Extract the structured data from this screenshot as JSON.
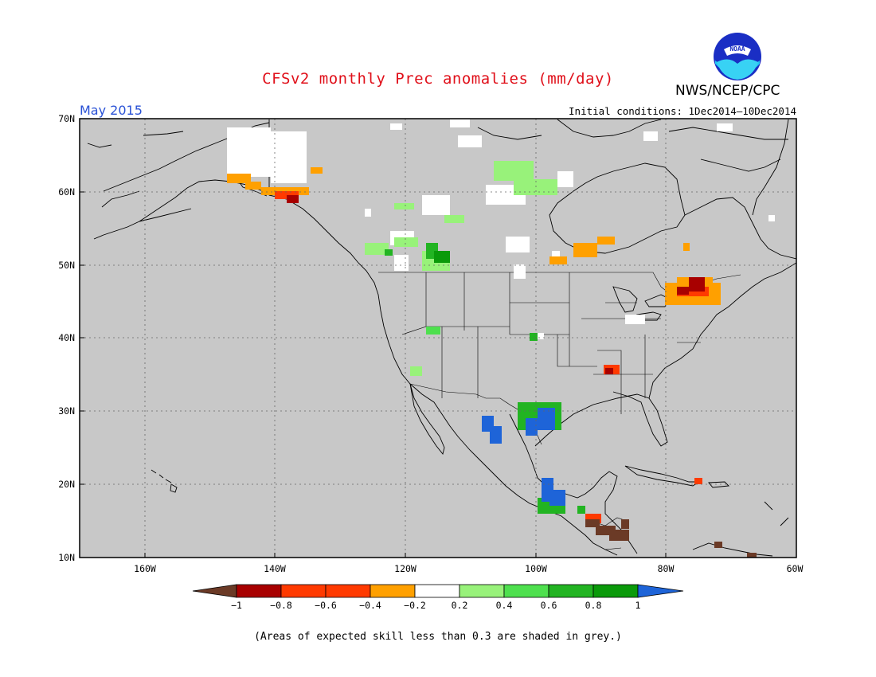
{
  "header": {
    "title": "CFSv2 monthly Prec anomalies (mm/day)",
    "agency": "NWS/NCEP/CPC",
    "logo_text": "NOAA",
    "month": "May 2015",
    "initial_conditions": "Initial conditions: 1Dec2014—10Dec2014"
  },
  "map": {
    "lat_labels": [
      "70N",
      "60N",
      "50N",
      "40N",
      "30N",
      "20N",
      "10N"
    ],
    "lon_labels": [
      "160W",
      "140W",
      "120W",
      "100W",
      "80W",
      "60W"
    ],
    "background_color": "#c8c8c8"
  },
  "colorbar": {
    "tick_labels": [
      "−1",
      "−0.8",
      "−0.6",
      "−0.4",
      "−0.2",
      "0.2",
      "0.4",
      "0.6",
      "0.8",
      "1"
    ],
    "colors": [
      "#6b3a26",
      "#a80000",
      "#ff3a00",
      "#ffa000",
      "#ffffff",
      "#98f27a",
      "#4ee04e",
      "#22b422",
      "#0a9a0a",
      "#1e64d8"
    ]
  },
  "footnote": "(Areas of expected skill less than 0.3 are shaded in grey.)"
}
